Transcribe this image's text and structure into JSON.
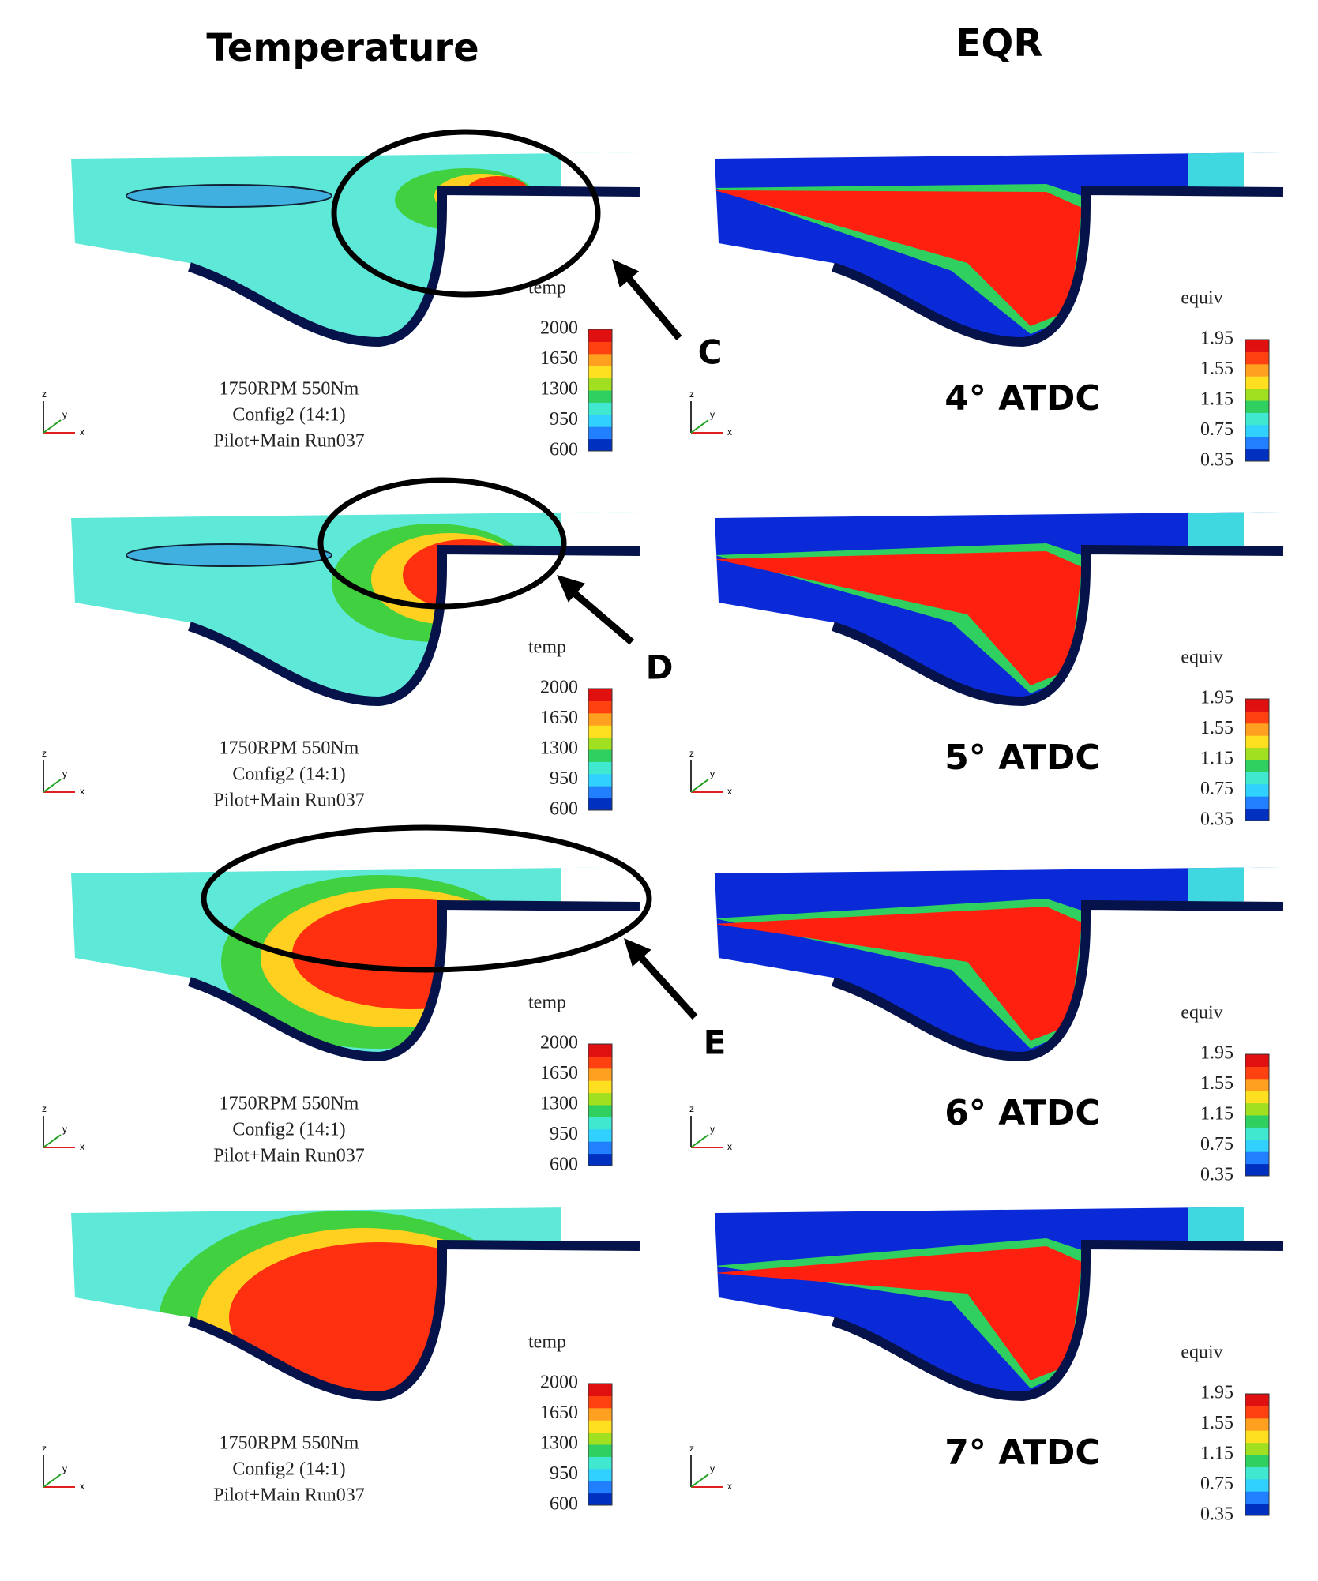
{
  "columns": [
    "Temperature",
    "EQR"
  ],
  "axis_labels": [
    "z",
    "y",
    "x"
  ],
  "rows": [
    {
      "temp_legend": {
        "title": "temp",
        "ticks": [
          "2000",
          "1650",
          "1300",
          "950",
          "600"
        ]
      },
      "run_info": [
        "1750RPM 550Nm",
        "Config2 (14:1)",
        "Pilot+Main Run037"
      ],
      "eqr_legend": {
        "title": "equiv",
        "ticks": [
          "1.95",
          "1.55",
          "1.15",
          "0.75",
          "0.35"
        ]
      },
      "crank_angle": "4° ATDC"
    },
    {
      "temp_legend": {
        "title": "temp",
        "ticks": [
          "2000",
          "1650",
          "1300",
          "950",
          "600"
        ]
      },
      "run_info": [
        "1750RPM 550Nm",
        "Config2 (14:1)",
        "Pilot+Main Run037"
      ],
      "eqr_legend": {
        "title": "equiv",
        "ticks": [
          "1.95",
          "1.55",
          "1.15",
          "0.75",
          "0.35"
        ]
      },
      "crank_angle": "5° ATDC"
    },
    {
      "temp_legend": {
        "title": "temp",
        "ticks": [
          "2000",
          "1650",
          "1300",
          "950",
          "600"
        ]
      },
      "run_info": [
        "1750RPM 550Nm",
        "Config2 (14:1)",
        "Pilot+Main Run037"
      ],
      "eqr_legend": {
        "title": "equiv",
        "ticks": [
          "1.95",
          "1.55",
          "1.15",
          "0.75",
          "0.35"
        ]
      },
      "crank_angle": "6° ATDC"
    },
    {
      "temp_legend": {
        "title": "temp",
        "ticks": [
          "2000",
          "1650",
          "1300",
          "950",
          "600"
        ]
      },
      "run_info": [
        "1750RPM 550Nm",
        "Config2 (14:1)",
        "Pilot+Main Run037"
      ],
      "eqr_legend": {
        "title": "equiv",
        "ticks": [
          "1.95",
          "1.55",
          "1.15",
          "0.75",
          "0.35"
        ]
      },
      "crank_angle": "7° ATDC"
    }
  ],
  "callouts": [
    {
      "label": "C"
    },
    {
      "label": "D"
    },
    {
      "label": "E"
    }
  ]
}
